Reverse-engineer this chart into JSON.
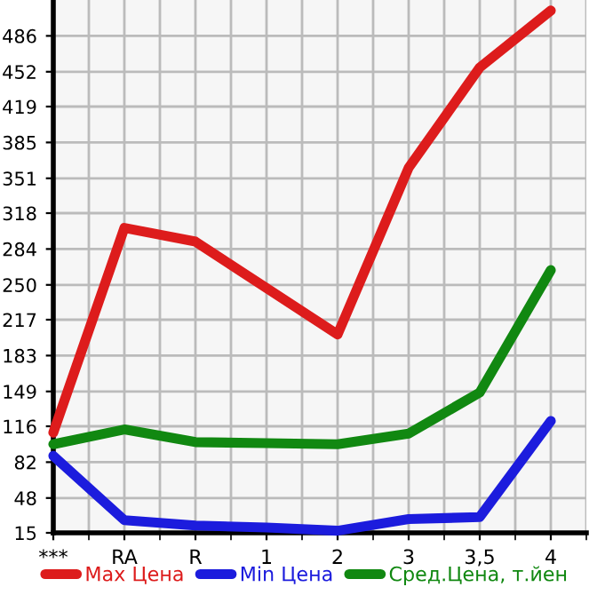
{
  "chart_data": {
    "type": "line",
    "categories": [
      "***",
      "RA",
      "R",
      "1",
      "2",
      "3",
      "3,5",
      "4"
    ],
    "series": [
      {
        "name": "Max Цена",
        "color": "#dd1c1c",
        "values": [
          110,
          304,
          291,
          247,
          203,
          361,
          456,
          510
        ]
      },
      {
        "name": "Min Цена",
        "color": "#1c1cdd",
        "values": [
          88,
          27,
          22,
          20,
          17,
          28,
          30,
          121
        ]
      },
      {
        "name": "Сред.Цена, т.йен",
        "color": "#118811",
        "values": [
          99,
          113,
          101,
          100,
          99,
          109,
          148,
          264
        ]
      }
    ],
    "ylim": [
      15,
      520
    ],
    "yticks": [
      15,
      48,
      82,
      116,
      149,
      183,
      217,
      250,
      284,
      318,
      351,
      385,
      419,
      452,
      486
    ],
    "grid": true,
    "legend": "bottom",
    "marker": "none",
    "line_style": "solid"
  }
}
